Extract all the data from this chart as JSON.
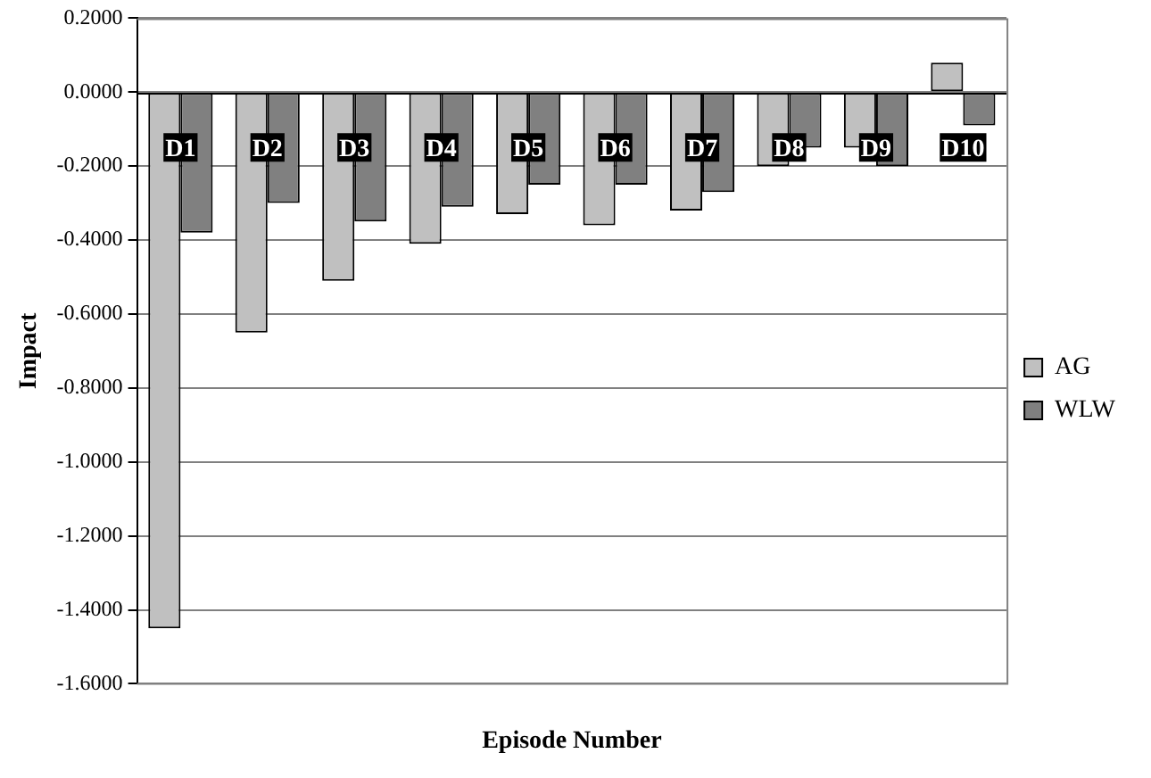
{
  "chart_data": {
    "type": "bar",
    "xlabel": "Episode Number",
    "ylabel": "Impact",
    "categories": [
      "D1",
      "D2",
      "D3",
      "D4",
      "D5",
      "D6",
      "D7",
      "D8",
      "D9",
      "D10"
    ],
    "series": [
      {
        "name": "AG",
        "color": "#c0c0c0",
        "values": [
          -1.45,
          -0.65,
          -0.51,
          -0.41,
          -0.33,
          -0.36,
          -0.32,
          -0.2,
          -0.15,
          0.08
        ]
      },
      {
        "name": "WLW",
        "color": "#808080",
        "values": [
          -0.38,
          -0.3,
          -0.35,
          -0.31,
          -0.25,
          -0.25,
          -0.27,
          -0.15,
          -0.2,
          -0.09
        ]
      }
    ],
    "ylim": [
      -1.6,
      0.2
    ],
    "yticks": [
      {
        "value": 0.2,
        "label": "0.2000"
      },
      {
        "value": 0,
        "label": "0.0000"
      },
      {
        "value": -0.2,
        "label": "-0.2000"
      },
      {
        "value": -0.4,
        "label": "-0.4000"
      },
      {
        "value": -0.6,
        "label": "-0.6000"
      },
      {
        "value": -0.8,
        "label": "-0.8000"
      },
      {
        "value": -1,
        "label": "-1.0000"
      },
      {
        "value": -1.2,
        "label": "-1.2000"
      },
      {
        "value": -1.4,
        "label": "-1.4000"
      },
      {
        "value": -1.6,
        "label": "-1.6000"
      }
    ],
    "grid": "y",
    "legend": "right"
  }
}
